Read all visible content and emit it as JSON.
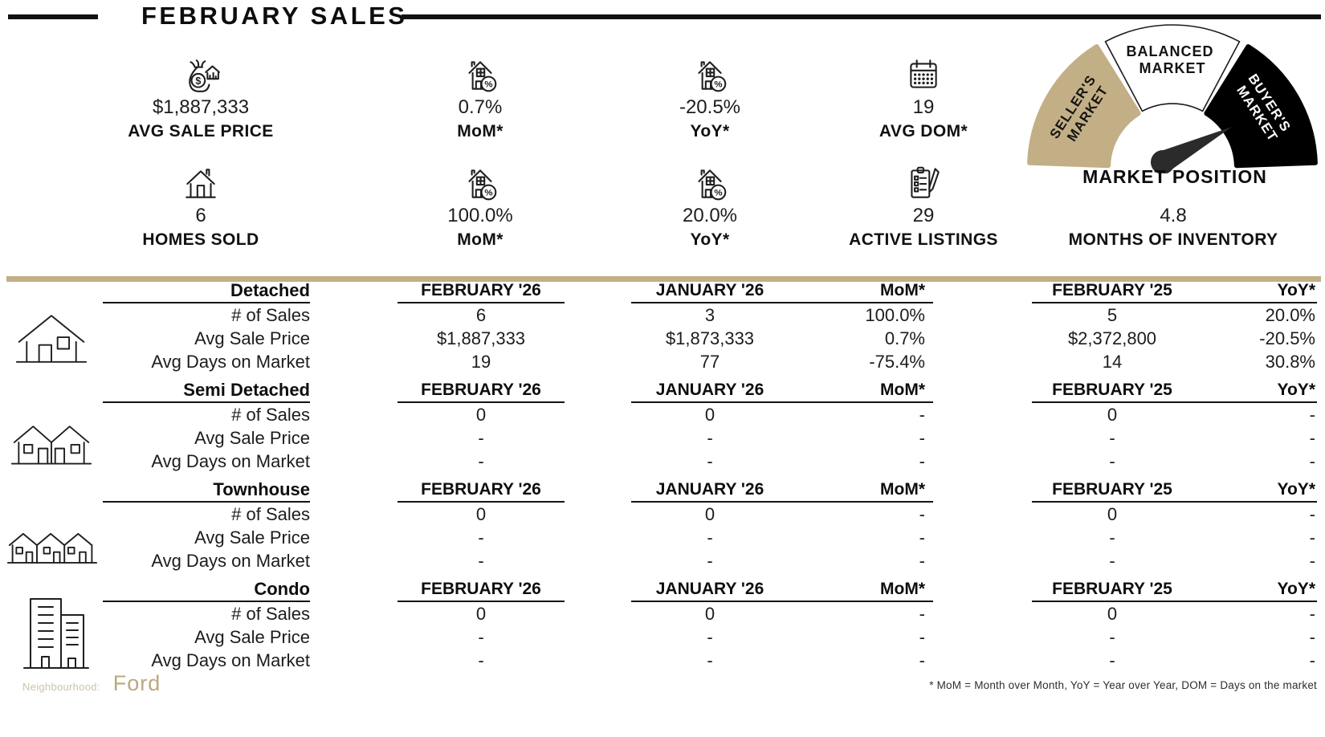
{
  "title": "FEBRUARY SALES",
  "stats": {
    "row1": [
      {
        "icon": "money-bag-house-icon",
        "value": "$1,887,333",
        "label": "AVG SALE PRICE"
      },
      {
        "icon": "house-percent-icon",
        "value": "0.7%",
        "label": "MoM*"
      },
      {
        "icon": "house-percent-icon",
        "value": "-20.5%",
        "label": "YoY*"
      },
      {
        "icon": "calendar-icon",
        "value": "19",
        "label": "AVG DOM*"
      }
    ],
    "row2": [
      {
        "icon": "house-icon",
        "value": "6",
        "label": "HOMES SOLD"
      },
      {
        "icon": "house-percent-icon",
        "value": "100.0%",
        "label": "MoM*"
      },
      {
        "icon": "house-percent-icon",
        "value": "20.0%",
        "label": "YoY*"
      },
      {
        "icon": "clipboard-pencil-icon",
        "value": "29",
        "label": "ACTIVE LISTINGS"
      },
      {
        "icon": "none",
        "value": "4.8",
        "label": "MONTHS OF INVENTORY"
      }
    ]
  },
  "gauge": {
    "title": "MARKET POSITION",
    "segments": [
      {
        "lines": [
          "SELLER'S",
          "MARKET"
        ],
        "color": "#C3AF86"
      },
      {
        "lines": [
          "BALANCED",
          "MARKET"
        ],
        "color": "#FFFFFF"
      },
      {
        "lines": [
          "BUYER'S",
          "MARKET"
        ],
        "color": "#000000"
      }
    ],
    "needle_points_to": "BUYER'S MARKET"
  },
  "table": {
    "columns": [
      "FEBRUARY '26",
      "JANUARY '26",
      "MoM*",
      "FEBRUARY '25",
      "YoY*"
    ],
    "row_labels": [
      "# of Sales",
      "Avg Sale Price",
      "Avg Days on Market"
    ],
    "sections": [
      {
        "name": "Detached",
        "icon": "detached-house-icon",
        "rows": [
          [
            "6",
            "3",
            "100.0%",
            "5",
            "20.0%"
          ],
          [
            "$1,887,333",
            "$1,873,333",
            "0.7%",
            "$2,372,800",
            "-20.5%"
          ],
          [
            "19",
            "77",
            "-75.4%",
            "14",
            "30.8%"
          ]
        ]
      },
      {
        "name": "Semi Detached",
        "icon": "semi-detached-house-icon",
        "rows": [
          [
            "0",
            "0",
            "-",
            "0",
            "-"
          ],
          [
            "-",
            "-",
            "-",
            "-",
            "-"
          ],
          [
            "-",
            "-",
            "-",
            "-",
            "-"
          ]
        ]
      },
      {
        "name": "Townhouse",
        "icon": "townhouse-icon",
        "rows": [
          [
            "0",
            "0",
            "-",
            "0",
            "-"
          ],
          [
            "-",
            "-",
            "-",
            "-",
            "-"
          ],
          [
            "-",
            "-",
            "-",
            "-",
            "-"
          ]
        ]
      },
      {
        "name": "Condo",
        "icon": "condo-icon",
        "rows": [
          [
            "0",
            "0",
            "-",
            "0",
            "-"
          ],
          [
            "-",
            "-",
            "-",
            "-",
            "-"
          ],
          [
            "-",
            "-",
            "-",
            "-",
            "-"
          ]
        ]
      }
    ]
  },
  "footer": {
    "neighbourhood_label": "Neighbourhood:",
    "neighbourhood_value": "Ford",
    "footnote": "* MoM = Month over Month, YoY = Year over Year, DOM = Days on the market"
  },
  "colors": {
    "accent_tan": "#C3AF86",
    "buyer_black": "#000000",
    "needle": "#2B2B2B"
  },
  "chart_data": [
    {
      "type": "table",
      "title": "February Sales by Property Type",
      "columns": [
        "FEBRUARY '26",
        "JANUARY '26",
        "MoM*",
        "FEBRUARY '25",
        "YoY*"
      ],
      "row_labels": [
        "# of Sales",
        "Avg Sale Price",
        "Avg Days on Market"
      ],
      "series": [
        {
          "name": "Detached",
          "values": [
            [
              "6",
              "3",
              "100.0%",
              "5",
              "20.0%"
            ],
            [
              "$1,887,333",
              "$1,873,333",
              "0.7%",
              "$2,372,800",
              "-20.5%"
            ],
            [
              "19",
              "77",
              "-75.4%",
              "14",
              "30.8%"
            ]
          ]
        },
        {
          "name": "Semi Detached",
          "values": [
            [
              "0",
              "0",
              "-",
              "0",
              "-"
            ],
            [
              "-",
              "-",
              "-",
              "-",
              "-"
            ],
            [
              "-",
              "-",
              "-",
              "-",
              "-"
            ]
          ]
        },
        {
          "name": "Townhouse",
          "values": [
            [
              "0",
              "0",
              "-",
              "0",
              "-"
            ],
            [
              "-",
              "-",
              "-",
              "-",
              "-"
            ],
            [
              "-",
              "-",
              "-",
              "-",
              "-"
            ]
          ]
        },
        {
          "name": "Condo",
          "values": [
            [
              "0",
              "0",
              "-",
              "0",
              "-"
            ],
            [
              "-",
              "-",
              "-",
              "-",
              "-"
            ],
            [
              "-",
              "-",
              "-",
              "-",
              "-"
            ]
          ]
        }
      ]
    },
    {
      "type": "pie",
      "title": "MARKET POSITION",
      "categories": [
        "SELLER'S MARKET",
        "BALANCED MARKET",
        "BUYER'S MARKET"
      ],
      "values": [
        1,
        1,
        1
      ],
      "annotations": "semicircular gauge, needle points to BUYER'S MARKET"
    }
  ]
}
